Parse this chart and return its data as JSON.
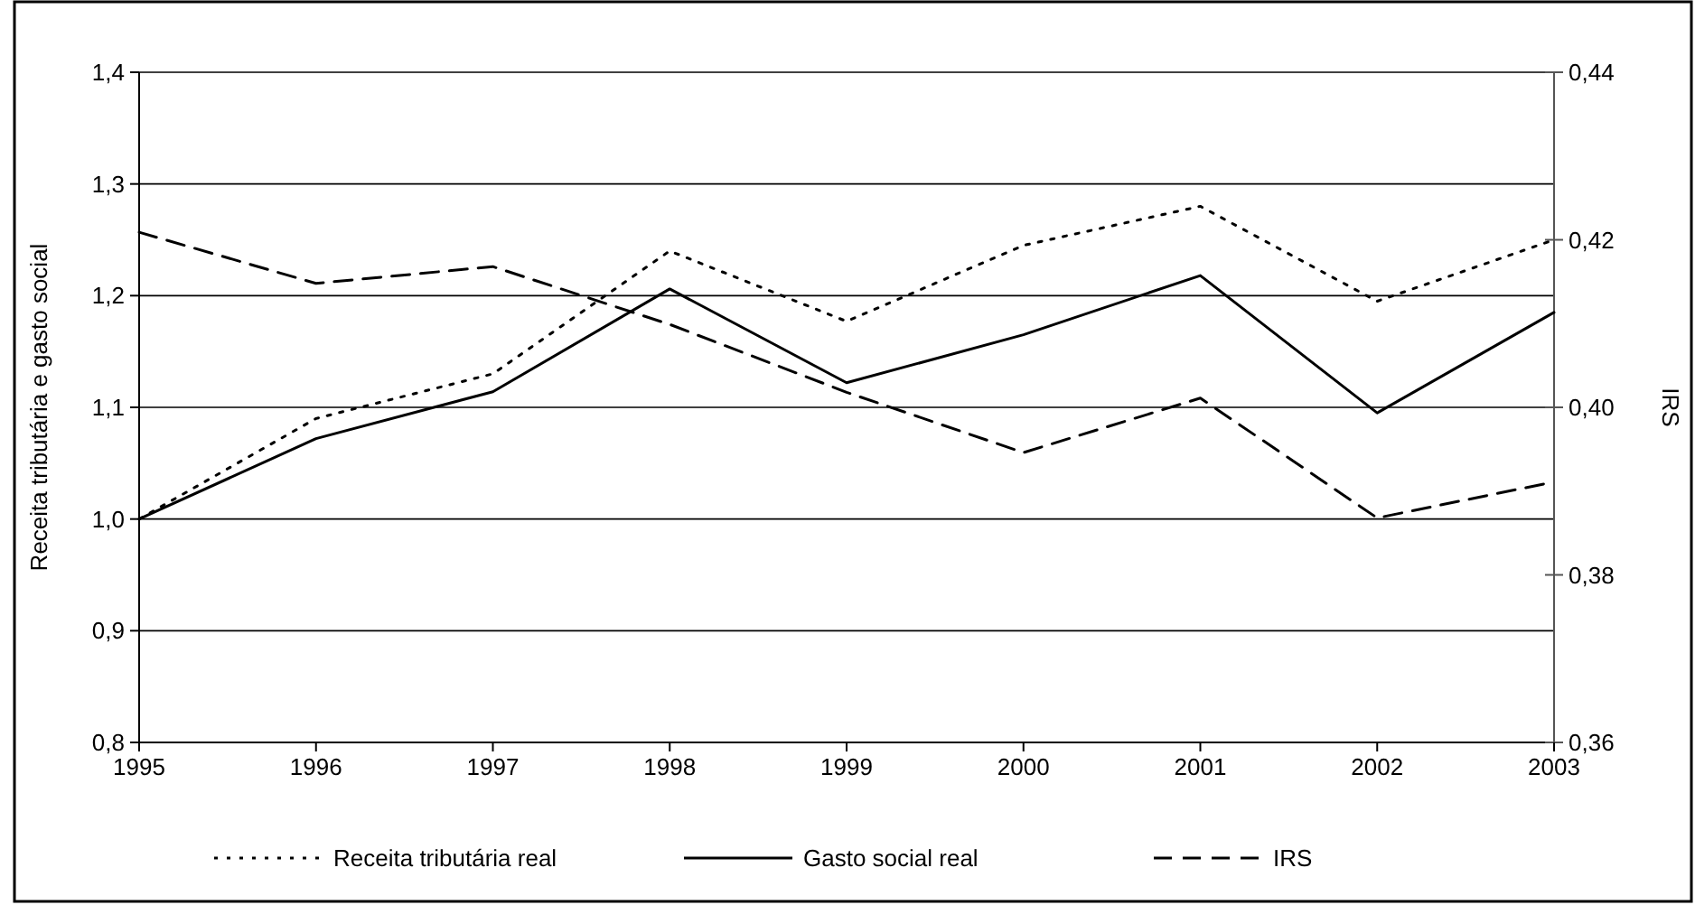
{
  "chart_data": {
    "type": "line",
    "ylabel": "Receita tributária e gasto social",
    "y2label": "IRS",
    "categories": [
      "1995",
      "1996",
      "1997",
      "1998",
      "1999",
      "2000",
      "2001",
      "2002",
      "2003"
    ],
    "series": [
      {
        "name": "Receita tributária real",
        "color": "#000000",
        "line_style": "dotted",
        "values": [
          1.0,
          1.09,
          1.13,
          1.24,
          1.177,
          1.245,
          1.28,
          1.195,
          1.25
        ]
      },
      {
        "name": "Gasto social real",
        "color": "#000000",
        "line_style": "solid",
        "values": [
          1.0,
          1.072,
          1.114,
          1.206,
          1.122,
          1.165,
          1.218,
          1.095,
          1.185
        ]
      },
      {
        "name": "IRS",
        "color": "#000000",
        "line_style": "dashed",
        "axis": "y2",
        "values": [
          0.4209,
          0.4148,
          0.4168,
          0.4099,
          0.4018,
          0.3946,
          0.4011,
          0.3868,
          0.3911
        ]
      }
    ],
    "ylim": [
      0.8,
      1.4
    ],
    "yticks": [
      {
        "value": 0.8,
        "label": "0,8"
      },
      {
        "value": 0.9,
        "label": "0,9"
      },
      {
        "value": 1.0,
        "label": "1,0"
      },
      {
        "value": 1.1,
        "label": "1,1"
      },
      {
        "value": 1.2,
        "label": "1,2"
      },
      {
        "value": 1.3,
        "label": "1,3"
      },
      {
        "value": 1.4,
        "label": "1,4"
      }
    ],
    "y2lim": [
      0.36,
      0.44
    ],
    "y2ticks": [
      {
        "value": 0.36,
        "label": "0,36"
      },
      {
        "value": 0.38,
        "label": "0,38"
      },
      {
        "value": 0.4,
        "label": "0,40"
      },
      {
        "value": 0.42,
        "label": "0,42"
      },
      {
        "value": 0.44,
        "label": "0,44"
      }
    ],
    "grid": "y",
    "legend": "bottom",
    "marker": "none"
  }
}
